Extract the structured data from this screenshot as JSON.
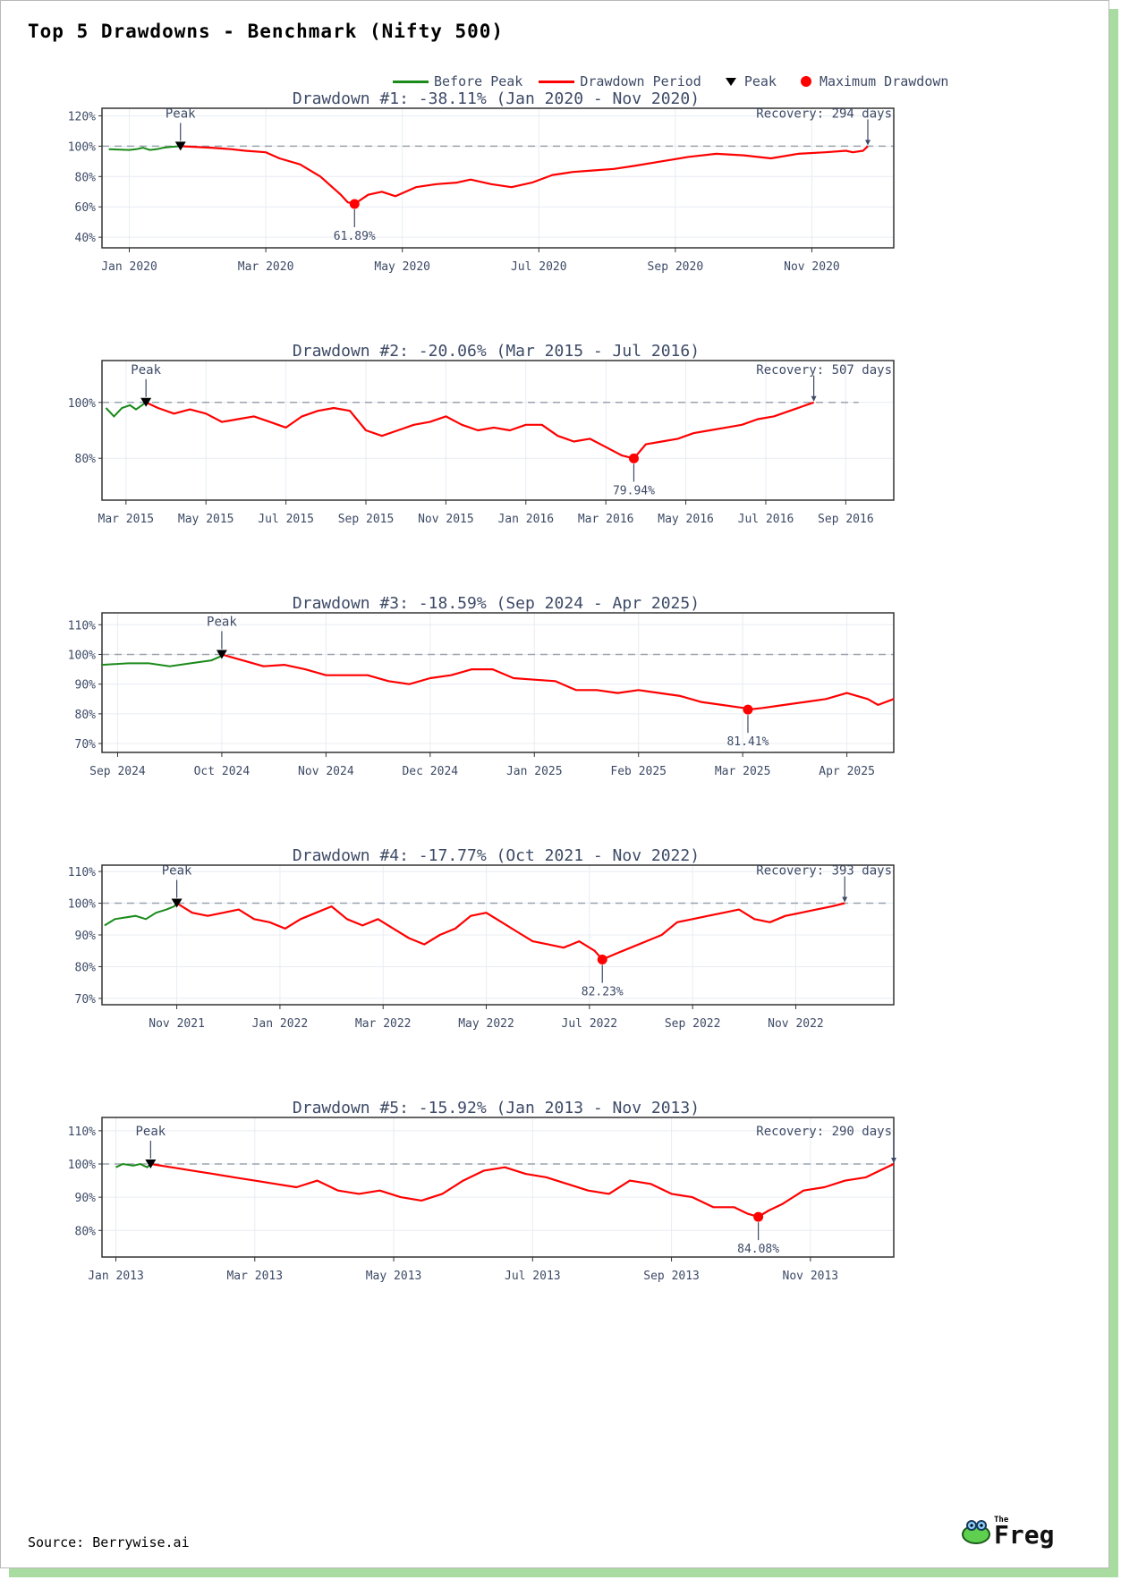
{
  "page": {
    "title": "Top 5 Drawdowns - Benchmark (Nifty 500)",
    "source": "Source: Berrywise.ai",
    "logo_text": "Freg",
    "logo_small": "The"
  },
  "legend": {
    "before_peak": "Before Peak",
    "drawdown_period": "Drawdown Period",
    "peak": "Peak",
    "max_drawdown": "Maximum Drawdown"
  },
  "colors": {
    "before": "#1a8a1a",
    "drawdown": "#ff0000",
    "peak": "#000000",
    "max": "#ff0000",
    "axis": "#3d4a66",
    "ref": "#9aa3ad"
  },
  "chart_data": [
    {
      "type": "line",
      "title": "Drawdown #1: -38.11% (Jan 2020 - Nov 2020)",
      "xlim": [
        -0.4,
        11.2
      ],
      "ylim": [
        33,
        125
      ],
      "yticks": [
        40,
        60,
        80,
        100,
        120
      ],
      "ytick_labels": [
        "40%",
        "60%",
        "80%",
        "100%",
        "120%"
      ],
      "xticks": [
        0,
        2,
        4,
        6,
        8,
        10
      ],
      "xtick_labels": [
        "Jan 2020",
        "Mar 2020",
        "May 2020",
        "Jul 2020",
        "Sep 2020",
        "Nov 2020"
      ],
      "before": [
        [
          -0.3,
          98
        ],
        [
          0,
          97.5
        ],
        [
          0.1,
          98
        ],
        [
          0.2,
          99
        ],
        [
          0.3,
          97.5
        ],
        [
          0.4,
          98
        ],
        [
          0.5,
          99
        ],
        [
          0.6,
          99.5
        ],
        [
          0.75,
          100
        ]
      ],
      "drawdown": [
        [
          0.75,
          100
        ],
        [
          1.2,
          99
        ],
        [
          1.5,
          98
        ],
        [
          1.7,
          97
        ],
        [
          2.0,
          96
        ],
        [
          2.2,
          92
        ],
        [
          2.5,
          88
        ],
        [
          2.8,
          80
        ],
        [
          3.0,
          72
        ],
        [
          3.1,
          68
        ],
        [
          3.2,
          63
        ],
        [
          3.3,
          61.89
        ],
        [
          3.5,
          68
        ],
        [
          3.7,
          70
        ],
        [
          3.9,
          67
        ],
        [
          4.2,
          73
        ],
        [
          4.5,
          75
        ],
        [
          4.8,
          76
        ],
        [
          5.0,
          78
        ],
        [
          5.3,
          75
        ],
        [
          5.6,
          73
        ],
        [
          5.9,
          76
        ],
        [
          6.2,
          81
        ],
        [
          6.5,
          83
        ],
        [
          6.8,
          84
        ],
        [
          7.1,
          85
        ],
        [
          7.4,
          87
        ],
        [
          7.8,
          90
        ],
        [
          8.2,
          93
        ],
        [
          8.6,
          95
        ],
        [
          9.0,
          94
        ],
        [
          9.4,
          92
        ],
        [
          9.8,
          95
        ],
        [
          10.2,
          96
        ],
        [
          10.5,
          97
        ],
        [
          10.6,
          96
        ],
        [
          10.75,
          97
        ],
        [
          10.82,
          100
        ]
      ],
      "peak": [
        0.75,
        100
      ],
      "trough": [
        3.3,
        61.89
      ],
      "trough_label": "61.89%",
      "recovery_x": 10.82,
      "recovery_label": "Recovery: 294 days",
      "peak_label": "Peak"
    },
    {
      "type": "line",
      "title": "Drawdown #2: -20.06% (Mar 2015 - Jul 2016)",
      "xlim": [
        -0.6,
        19.2
      ],
      "ylim": [
        65,
        115
      ],
      "yticks": [
        80,
        100
      ],
      "ytick_labels": [
        "80%",
        "100%"
      ],
      "xticks": [
        0,
        2,
        4,
        6,
        8,
        10,
        12,
        14,
        16,
        18
      ],
      "xtick_labels": [
        "Mar 2015",
        "May 2015",
        "Jul 2015",
        "Sep 2015",
        "Nov 2015",
        "Jan 2016",
        "Mar 2016",
        "May 2016",
        "Jul 2016",
        "Sep 2016"
      ],
      "before": [
        [
          -0.5,
          98
        ],
        [
          -0.3,
          95
        ],
        [
          -0.1,
          98
        ],
        [
          0.1,
          99
        ],
        [
          0.25,
          97.5
        ],
        [
          0.4,
          99
        ],
        [
          0.5,
          100
        ]
      ],
      "drawdown": [
        [
          0.5,
          100
        ],
        [
          0.8,
          98
        ],
        [
          1.2,
          96
        ],
        [
          1.6,
          97.5
        ],
        [
          2.0,
          96
        ],
        [
          2.4,
          93
        ],
        [
          2.8,
          94
        ],
        [
          3.2,
          95
        ],
        [
          3.6,
          93
        ],
        [
          4.0,
          91
        ],
        [
          4.4,
          95
        ],
        [
          4.8,
          97
        ],
        [
          5.2,
          98
        ],
        [
          5.6,
          97
        ],
        [
          6.0,
          90
        ],
        [
          6.4,
          88
        ],
        [
          6.8,
          90
        ],
        [
          7.2,
          92
        ],
        [
          7.6,
          93
        ],
        [
          8.0,
          95
        ],
        [
          8.4,
          92
        ],
        [
          8.8,
          90
        ],
        [
          9.2,
          91
        ],
        [
          9.6,
          90
        ],
        [
          10.0,
          92
        ],
        [
          10.4,
          92
        ],
        [
          10.8,
          88
        ],
        [
          11.2,
          86
        ],
        [
          11.6,
          87
        ],
        [
          12.0,
          84
        ],
        [
          12.4,
          81
        ],
        [
          12.7,
          79.94
        ],
        [
          13.0,
          85
        ],
        [
          13.4,
          86
        ],
        [
          13.8,
          87
        ],
        [
          14.2,
          89
        ],
        [
          14.6,
          90
        ],
        [
          15.0,
          91
        ],
        [
          15.4,
          92
        ],
        [
          15.8,
          94
        ],
        [
          16.2,
          95
        ],
        [
          16.6,
          97
        ],
        [
          16.9,
          98.5
        ],
        [
          17.2,
          100
        ]
      ],
      "peak": [
        0.5,
        100
      ],
      "trough": [
        12.7,
        79.94
      ],
      "trough_label": "79.94%",
      "recovery_x": 17.2,
      "recovery_label": "Recovery: 507 days",
      "peak_label": "Peak"
    },
    {
      "type": "line",
      "title": "Drawdown #3: -18.59% (Sep 2024 - Apr 2025)",
      "xlim": [
        -0.15,
        7.45
      ],
      "ylim": [
        67,
        114
      ],
      "yticks": [
        70,
        80,
        90,
        100,
        110
      ],
      "ytick_labels": [
        "70%",
        "80%",
        "90%",
        "100%",
        "110%"
      ],
      "xticks": [
        0,
        1,
        2,
        3,
        4,
        5,
        6,
        7
      ],
      "xtick_labels": [
        "Sep 2024",
        "Oct 2024",
        "Nov 2024",
        "Dec 2024",
        "Jan 2025",
        "Feb 2025",
        "Mar 2025",
        "Apr 2025"
      ],
      "before": [
        [
          -0.15,
          96.5
        ],
        [
          0.1,
          97
        ],
        [
          0.3,
          97
        ],
        [
          0.5,
          96
        ],
        [
          0.7,
          97
        ],
        [
          0.9,
          98
        ],
        [
          1.0,
          99.5
        ]
      ],
      "drawdown": [
        [
          1.0,
          100
        ],
        [
          1.2,
          98
        ],
        [
          1.4,
          96
        ],
        [
          1.6,
          96.5
        ],
        [
          1.8,
          95
        ],
        [
          2.0,
          93
        ],
        [
          2.2,
          93
        ],
        [
          2.4,
          93
        ],
        [
          2.6,
          91
        ],
        [
          2.8,
          90
        ],
        [
          3.0,
          92
        ],
        [
          3.2,
          93
        ],
        [
          3.4,
          95
        ],
        [
          3.6,
          95
        ],
        [
          3.8,
          92
        ],
        [
          4.0,
          91.5
        ],
        [
          4.2,
          91
        ],
        [
          4.4,
          88
        ],
        [
          4.6,
          88
        ],
        [
          4.8,
          87
        ],
        [
          5.0,
          88
        ],
        [
          5.2,
          87
        ],
        [
          5.4,
          86
        ],
        [
          5.6,
          84
        ],
        [
          5.8,
          83
        ],
        [
          6.0,
          82
        ],
        [
          6.05,
          81.41
        ],
        [
          6.2,
          82
        ],
        [
          6.4,
          83
        ],
        [
          6.6,
          84
        ],
        [
          6.8,
          85
        ],
        [
          7.0,
          87
        ],
        [
          7.2,
          85
        ],
        [
          7.3,
          83
        ],
        [
          7.45,
          85
        ]
      ],
      "peak": [
        1.0,
        100
      ],
      "trough": [
        6.05,
        81.41
      ],
      "trough_label": "81.41%",
      "recovery_x": null,
      "recovery_label": "",
      "peak_label": "Peak"
    },
    {
      "type": "line",
      "title": "Drawdown #4: -17.77% (Oct 2021 - Nov 2022)",
      "xlim": [
        -1.45,
        13.9
      ],
      "ylim": [
        68,
        112
      ],
      "yticks": [
        70,
        80,
        90,
        100,
        110
      ],
      "ytick_labels": [
        "70%",
        "80%",
        "90%",
        "100%",
        "110%"
      ],
      "xticks": [
        0,
        2,
        4,
        6,
        8,
        10,
        12
      ],
      "xtick_labels": [
        "Nov 2021",
        "Jan 2022",
        "Mar 2022",
        "May 2022",
        "Jul 2022",
        "Sep 2022",
        "Nov 2022"
      ],
      "before": [
        [
          -1.4,
          93
        ],
        [
          -1.2,
          95
        ],
        [
          -1.0,
          95.5
        ],
        [
          -0.8,
          96
        ],
        [
          -0.6,
          95
        ],
        [
          -0.4,
          97
        ],
        [
          -0.2,
          98
        ],
        [
          -0.05,
          99
        ],
        [
          0.0,
          100
        ]
      ],
      "drawdown": [
        [
          0.0,
          100
        ],
        [
          0.3,
          97
        ],
        [
          0.6,
          96
        ],
        [
          0.9,
          97
        ],
        [
          1.2,
          98
        ],
        [
          1.5,
          95
        ],
        [
          1.8,
          94
        ],
        [
          2.1,
          92
        ],
        [
          2.4,
          95
        ],
        [
          2.7,
          97
        ],
        [
          3.0,
          99
        ],
        [
          3.3,
          95
        ],
        [
          3.6,
          93
        ],
        [
          3.9,
          95
        ],
        [
          4.2,
          92
        ],
        [
          4.5,
          89
        ],
        [
          4.8,
          87
        ],
        [
          5.1,
          90
        ],
        [
          5.4,
          92
        ],
        [
          5.7,
          96
        ],
        [
          6.0,
          97
        ],
        [
          6.3,
          94
        ],
        [
          6.6,
          91
        ],
        [
          6.9,
          88
        ],
        [
          7.2,
          87
        ],
        [
          7.5,
          86
        ],
        [
          7.8,
          88
        ],
        [
          8.1,
          85
        ],
        [
          8.25,
          82.23
        ],
        [
          8.5,
          84
        ],
        [
          8.8,
          86
        ],
        [
          9.1,
          88
        ],
        [
          9.4,
          90
        ],
        [
          9.7,
          94
        ],
        [
          10.0,
          95
        ],
        [
          10.3,
          96
        ],
        [
          10.6,
          97
        ],
        [
          10.9,
          98
        ],
        [
          11.2,
          95
        ],
        [
          11.5,
          94
        ],
        [
          11.8,
          96
        ],
        [
          12.1,
          97
        ],
        [
          12.4,
          98
        ],
        [
          12.7,
          99
        ],
        [
          12.95,
          100
        ]
      ],
      "peak": [
        0.0,
        100
      ],
      "trough": [
        8.25,
        82.23
      ],
      "trough_label": "82.23%",
      "recovery_x": 12.95,
      "recovery_label": "Recovery: 393 days",
      "peak_label": "Peak"
    },
    {
      "type": "line",
      "title": "Drawdown #5: -15.92% (Jan 2013 - Nov 2013)",
      "xlim": [
        -0.2,
        11.2
      ],
      "ylim": [
        72,
        114
      ],
      "yticks": [
        80,
        90,
        100,
        110
      ],
      "ytick_labels": [
        "80%",
        "90%",
        "100%",
        "110%"
      ],
      "xticks": [
        0,
        2,
        4,
        6,
        8,
        10
      ],
      "xtick_labels": [
        "Jan 2013",
        "Mar 2013",
        "May 2013",
        "Jul 2013",
        "Sep 2013",
        "Nov 2013"
      ],
      "before": [
        [
          0.0,
          99
        ],
        [
          0.1,
          100
        ],
        [
          0.25,
          99.5
        ],
        [
          0.35,
          100
        ],
        [
          0.45,
          99
        ],
        [
          0.5,
          100
        ]
      ],
      "drawdown": [
        [
          0.5,
          100
        ],
        [
          0.8,
          99
        ],
        [
          1.1,
          98
        ],
        [
          1.4,
          97
        ],
        [
          1.7,
          96
        ],
        [
          2.0,
          95
        ],
        [
          2.3,
          94
        ],
        [
          2.6,
          93
        ],
        [
          2.9,
          95
        ],
        [
          3.2,
          92
        ],
        [
          3.5,
          91
        ],
        [
          3.8,
          92
        ],
        [
          4.1,
          90
        ],
        [
          4.4,
          89
        ],
        [
          4.7,
          91
        ],
        [
          5.0,
          95
        ],
        [
          5.3,
          98
        ],
        [
          5.6,
          99
        ],
        [
          5.9,
          97
        ],
        [
          6.2,
          96
        ],
        [
          6.5,
          94
        ],
        [
          6.8,
          92
        ],
        [
          7.1,
          91
        ],
        [
          7.4,
          95
        ],
        [
          7.7,
          94
        ],
        [
          8.0,
          91
        ],
        [
          8.3,
          90
        ],
        [
          8.6,
          87
        ],
        [
          8.9,
          87
        ],
        [
          9.1,
          85
        ],
        [
          9.25,
          84.08
        ],
        [
          9.4,
          86
        ],
        [
          9.6,
          88
        ],
        [
          9.9,
          92
        ],
        [
          10.2,
          93
        ],
        [
          10.5,
          95
        ],
        [
          10.8,
          96
        ],
        [
          11.0,
          98
        ],
        [
          11.2,
          100
        ]
      ],
      "peak": [
        0.5,
        100
      ],
      "trough": [
        9.25,
        84.08
      ],
      "trough_label": "84.08%",
      "recovery_x": 11.2,
      "recovery_label": "Recovery: 290 days",
      "peak_label": "Peak"
    }
  ]
}
